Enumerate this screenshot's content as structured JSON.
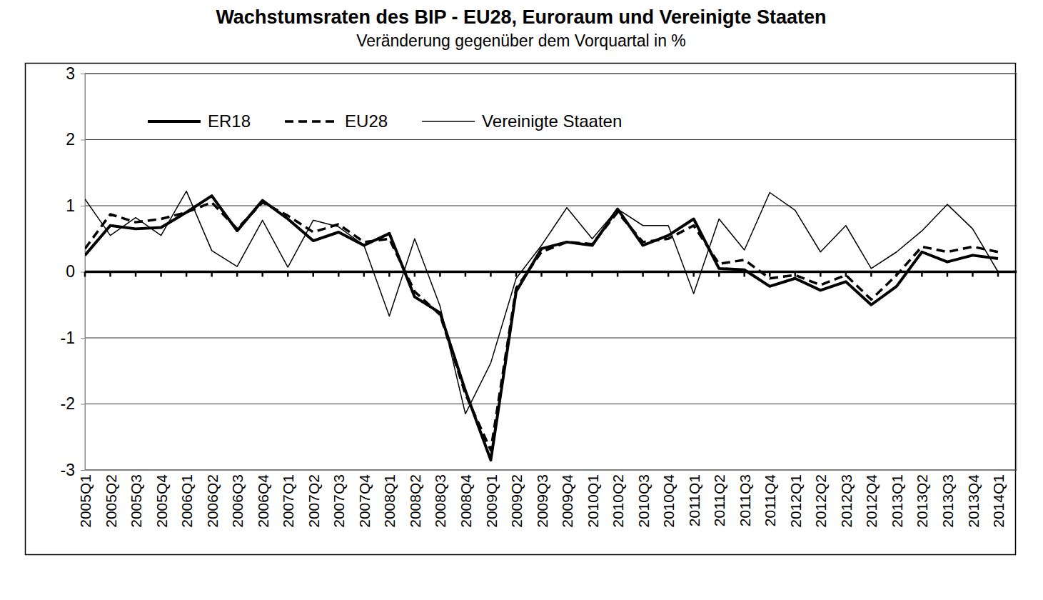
{
  "chart_data": {
    "type": "line",
    "title": "Wachstumsraten des BIP - EU28, Euroraum und Vereinigte Staaten",
    "subtitle": "Veränderung gegenüber dem Vorquartal in %",
    "categories": [
      "2005Q1",
      "2005Q2",
      "2005Q3",
      "2005Q4",
      "2006Q1",
      "2006Q2",
      "2006Q3",
      "2006Q4",
      "2007Q1",
      "2007Q2",
      "2007Q3",
      "2007Q4",
      "2008Q1",
      "2008Q2",
      "2008Q3",
      "2008Q4",
      "2009Q1",
      "2009Q2",
      "2009Q3",
      "2009Q4",
      "2010Q1",
      "2010Q2",
      "2010Q3",
      "2010Q4",
      "2011Q1",
      "2011Q2",
      "2011Q3",
      "2011Q4",
      "2012Q1",
      "2012Q2",
      "2012Q3",
      "2012Q4",
      "2013Q1",
      "2013Q2",
      "2013Q3",
      "2013Q4",
      "2014Q1"
    ],
    "series": [
      {
        "name": "ER18",
        "color": "#000000",
        "line_style": "solid",
        "values": [
          0.25,
          0.7,
          0.65,
          0.67,
          0.9,
          1.15,
          0.62,
          1.08,
          0.8,
          0.47,
          0.6,
          0.4,
          0.58,
          -0.38,
          -0.62,
          -1.8,
          -2.85,
          -0.3,
          0.35,
          0.45,
          0.4,
          0.95,
          0.4,
          0.55,
          0.8,
          0.05,
          0.03,
          -0.22,
          -0.1,
          -0.28,
          -0.15,
          -0.5,
          -0.22,
          0.3,
          0.15,
          0.25,
          0.2
        ]
      },
      {
        "name": "EU28",
        "color": "#000000",
        "line_style": "dashed",
        "values": [
          0.35,
          0.87,
          0.75,
          0.8,
          0.9,
          1.05,
          0.65,
          1.05,
          0.85,
          0.6,
          0.72,
          0.45,
          0.5,
          -0.3,
          -0.65,
          -1.85,
          -2.7,
          -0.25,
          0.3,
          0.45,
          0.42,
          0.9,
          0.45,
          0.5,
          0.7,
          0.12,
          0.18,
          -0.1,
          -0.05,
          -0.2,
          -0.05,
          -0.42,
          -0.05,
          0.38,
          0.3,
          0.38,
          0.3
        ]
      },
      {
        "name": "Vereinigte Staaten",
        "color": "#000000",
        "line_style": "solid",
        "values": [
          1.1,
          0.55,
          0.82,
          0.55,
          1.22,
          0.32,
          0.08,
          0.78,
          0.07,
          0.78,
          0.68,
          0.4,
          -0.67,
          0.5,
          -0.52,
          -2.15,
          -1.38,
          -0.1,
          0.4,
          0.97,
          0.5,
          0.95,
          0.7,
          0.7,
          -0.33,
          0.8,
          0.33,
          1.2,
          0.93,
          0.3,
          0.7,
          0.05,
          0.3,
          0.62,
          1.02,
          0.65,
          0.0
        ]
      }
    ],
    "ylim": [
      -3,
      3
    ],
    "yticks": [
      -3,
      -2,
      -1,
      0,
      1,
      2,
      3
    ],
    "grid": true,
    "legend": "top-left"
  }
}
